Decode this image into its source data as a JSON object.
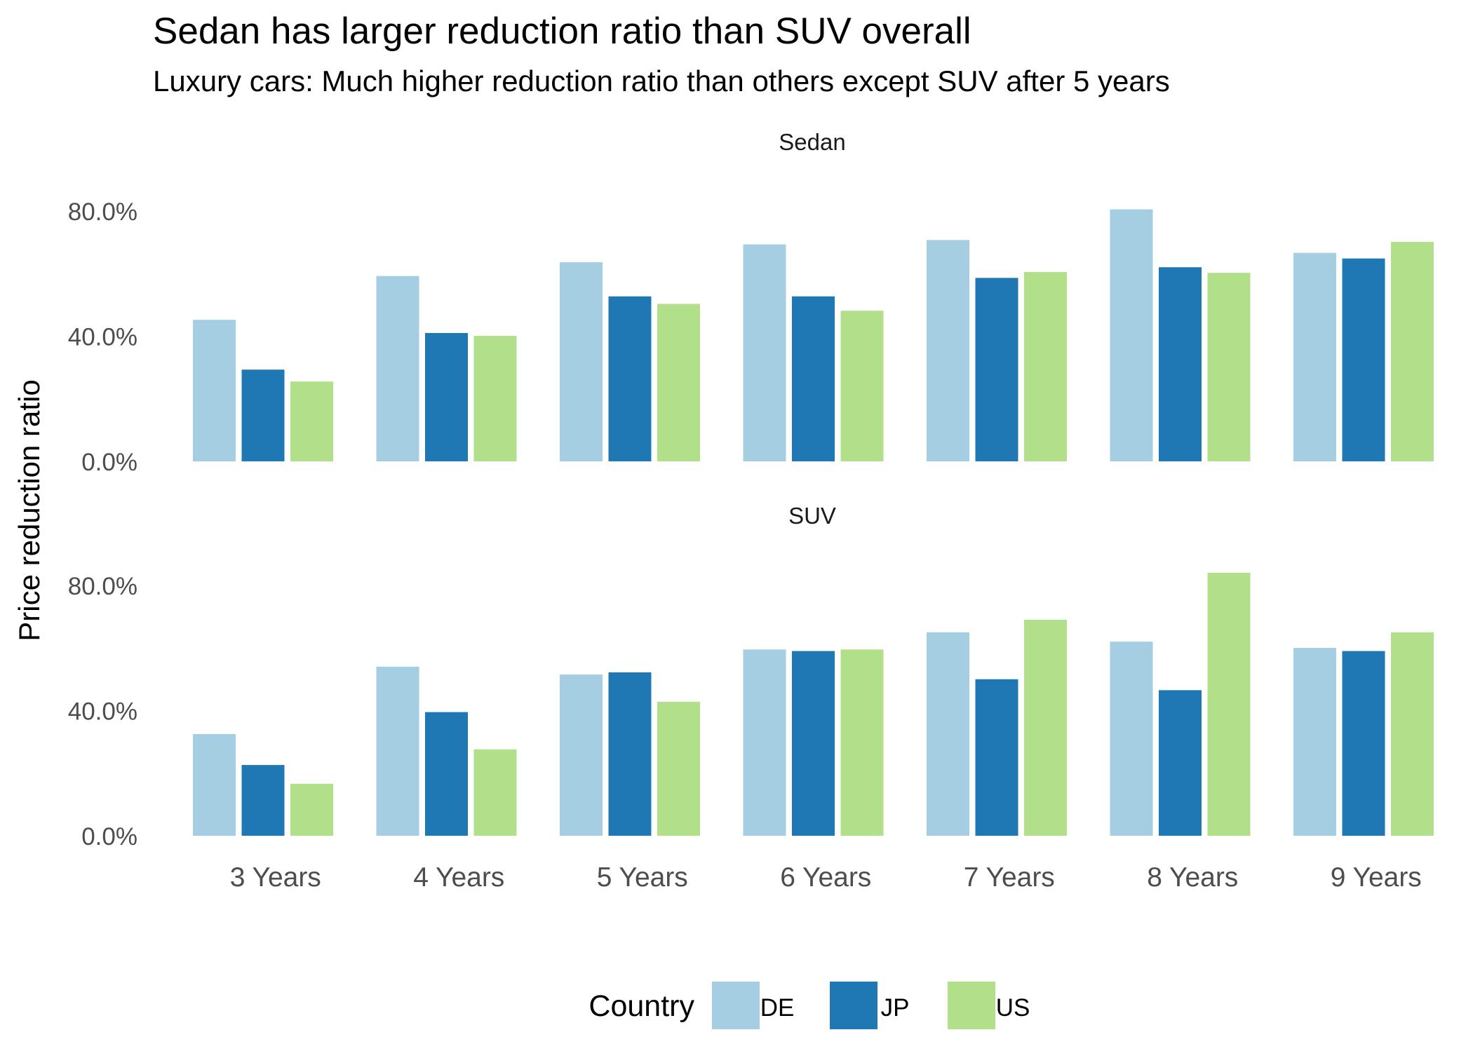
{
  "title": "Sedan has larger reduction ratio than SUV overall",
  "subtitle": "Luxury cars: Much higher reduction ratio than others except SUV after 5 years",
  "chart_data": {
    "type": "bar",
    "ylabel": "Price reduction ratio",
    "xlabel": "",
    "categories": [
      "3 Years",
      "4 Years",
      "5 Years",
      "6 Years",
      "7 Years",
      "8 Years",
      "9 Years"
    ],
    "ylim": [
      0,
      0.85
    ],
    "y_ticks": [
      0,
      0.4,
      0.8
    ],
    "y_tick_labels": [
      "0.0%",
      "40.0%",
      "80.0%"
    ],
    "grid": false,
    "legend": {
      "title": "Country",
      "placement": "bottom",
      "entries": [
        "DE",
        "JP",
        "US"
      ]
    },
    "colors": {
      "DE": "#a6cee3",
      "JP": "#1f78b4",
      "US": "#b2df8a"
    },
    "panels": [
      {
        "title": "Sedan",
        "series": [
          {
            "name": "DE",
            "values": [
              0.452,
              0.592,
              0.636,
              0.693,
              0.707,
              0.805,
              0.666
            ]
          },
          {
            "name": "JP",
            "values": [
              0.293,
              0.41,
              0.527,
              0.527,
              0.586,
              0.62,
              0.648
            ]
          },
          {
            "name": "US",
            "values": [
              0.255,
              0.401,
              0.503,
              0.481,
              0.605,
              0.602,
              0.701
            ]
          }
        ]
      },
      {
        "title": "SUV",
        "series": [
          {
            "name": "DE",
            "values": [
              0.325,
              0.54,
              0.515,
              0.595,
              0.65,
              0.62,
              0.6
            ]
          },
          {
            "name": "JP",
            "values": [
              0.226,
              0.395,
              0.522,
              0.59,
              0.5,
              0.465,
              0.59
            ]
          },
          {
            "name": "US",
            "values": [
              0.166,
              0.276,
              0.428,
              0.595,
              0.69,
              0.84,
              0.65
            ]
          }
        ]
      }
    ]
  }
}
